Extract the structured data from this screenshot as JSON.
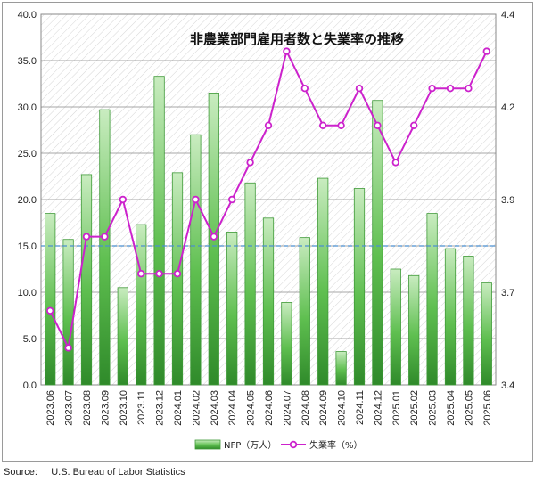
{
  "chart_data": {
    "type": "bar",
    "title": "非農業部門雇用者数と失業率の推移",
    "categories": [
      "2023.06",
      "2023.07",
      "2023.08",
      "2023.09",
      "2023.10",
      "2023.11",
      "2023.12",
      "2024.01",
      "2024.02",
      "2024.03",
      "2024.04",
      "2024.05",
      "2024.06",
      "2024.07",
      "2024.08",
      "2024.09",
      "2024.10",
      "2024.11",
      "2024.12",
      "2025.01",
      "2025.02",
      "2025.03",
      "2025.04",
      "2025.05",
      "2025.06"
    ],
    "series": [
      {
        "name": "NFP（万人）",
        "type": "bar",
        "axis": "left",
        "color": "#4fae45",
        "values": [
          18.5,
          15.7,
          22.7,
          29.7,
          10.5,
          17.3,
          33.3,
          22.9,
          27.0,
          31.5,
          16.5,
          21.8,
          18.0,
          8.9,
          15.9,
          22.3,
          3.6,
          21.2,
          30.7,
          12.5,
          11.8,
          18.5,
          14.7,
          13.9,
          11.0
        ]
      },
      {
        "name": "失業率（%）",
        "type": "line",
        "axis": "right",
        "color": "#cc22cc",
        "values": [
          3.6,
          3.5,
          3.8,
          3.8,
          3.9,
          3.7,
          3.7,
          3.7,
          3.9,
          3.8,
          3.9,
          4.0,
          4.1,
          4.3,
          4.2,
          4.1,
          4.1,
          4.2,
          4.1,
          4.0,
          4.1,
          4.2,
          4.2,
          4.2,
          4.3
        ]
      }
    ],
    "y_left": {
      "ylim": [
        0,
        40
      ],
      "ticks": [
        "0.0",
        "5.0",
        "10.0",
        "15.0",
        "20.0",
        "25.0",
        "30.0",
        "35.0",
        "40.0"
      ]
    },
    "y_right": {
      "ylim": [
        3.4,
        4.4
      ],
      "ticks": [
        "3.4",
        "3.7",
        "3.9",
        "4.2",
        "4.4"
      ],
      "tick_values": [
        3.4,
        3.65,
        3.9,
        4.15,
        4.4
      ]
    },
    "reference_line": {
      "value": 15,
      "axis": "left",
      "color": "#4a8fd0"
    },
    "grid": true,
    "legend_position": "bottom"
  },
  "source": {
    "label": "Source:",
    "text": "U.S. Bureau of Labor Statistics"
  }
}
